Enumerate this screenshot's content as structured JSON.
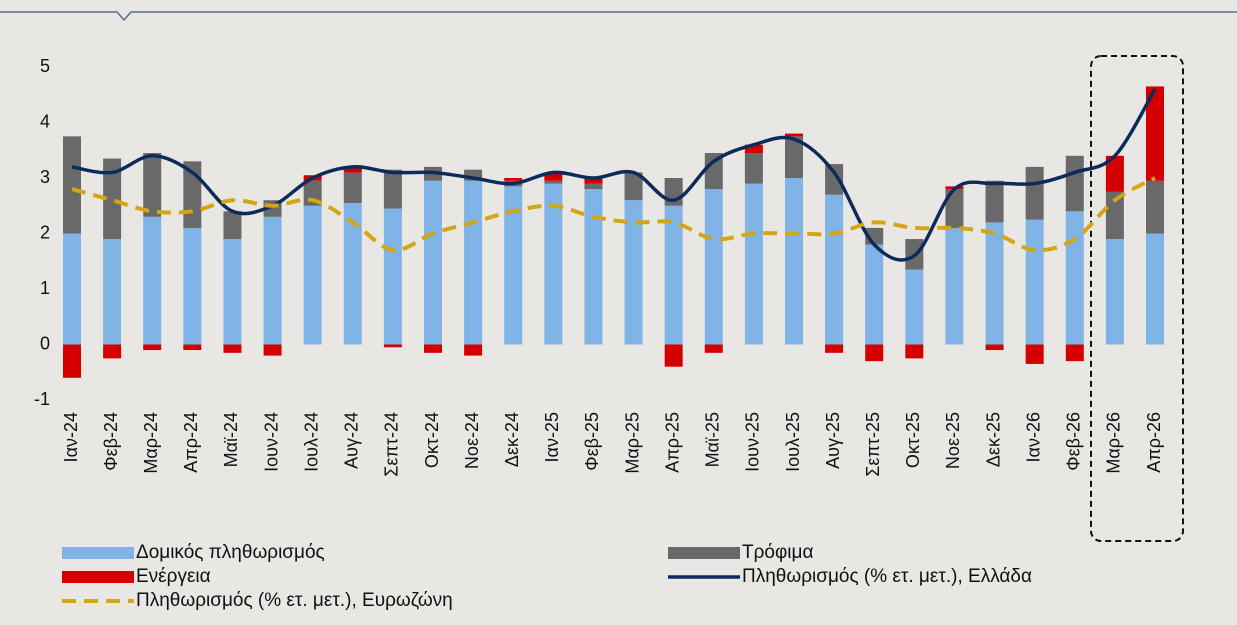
{
  "chart_data": {
    "type": "bar",
    "categories": [
      "Ιαν-24",
      "Φεβ-24",
      "Μαρ-24",
      "Απρ-24",
      "Μαϊ-24",
      "Ιουν-24",
      "Ιουλ-24",
      "Αυγ-24",
      "Σεπτ-24",
      "Οκτ-24",
      "Νοε-24",
      "Δεκ-24",
      "Ιαν-25",
      "Φεβ-25",
      "Μαρ-25",
      "Απρ-25",
      "Μαϊ-25",
      "Ιουν-25",
      "Ιουλ-25",
      "Αυγ-25",
      "Σεπτ-25",
      "Οκτ-25",
      "Νοε-25",
      "Δεκ-25",
      "Ιαν-26",
      "Φεβ-26",
      "Μαρ-26",
      "Απρ-26"
    ],
    "series": [
      {
        "name": "Δομικός πληθωρισμός",
        "color": "#80b3e6",
        "values": [
          2.0,
          1.9,
          2.3,
          2.1,
          1.9,
          2.3,
          2.5,
          2.55,
          2.45,
          2.95,
          2.95,
          2.85,
          2.9,
          2.8,
          2.6,
          2.5,
          2.8,
          2.9,
          3.0,
          2.7,
          1.8,
          1.35,
          2.1,
          2.2,
          2.25,
          2.4,
          1.9,
          2.0
        ]
      },
      {
        "name": "Τρόφιμα",
        "color": "#696969",
        "values": [
          1.75,
          1.45,
          1.15,
          1.2,
          0.5,
          0.3,
          0.45,
          0.55,
          0.7,
          0.25,
          0.2,
          0.1,
          0.05,
          0.1,
          0.5,
          0.5,
          0.65,
          0.55,
          0.75,
          0.55,
          0.3,
          0.55,
          0.7,
          0.75,
          0.95,
          1.0,
          0.85,
          0.95
        ]
      },
      {
        "name": "Ενέργεια",
        "color": "#d40000",
        "values": [
          -0.6,
          -0.25,
          -0.1,
          -0.1,
          -0.15,
          -0.2,
          0.1,
          0.1,
          -0.05,
          -0.15,
          -0.2,
          0.05,
          0.15,
          0.1,
          0,
          -0.4,
          -0.15,
          0.15,
          0.05,
          -0.15,
          -0.3,
          -0.25,
          0.05,
          -0.1,
          -0.35,
          -0.3,
          0.65,
          1.7
        ]
      },
      {
        "name": "Πληθωρισμός (% ετ. μετ.), Ελλάδα",
        "type": "line",
        "color": "#0d2a5c",
        "values": [
          3.2,
          3.1,
          3.4,
          3.1,
          2.4,
          2.5,
          3.0,
          3.2,
          3.1,
          3.1,
          3.0,
          2.9,
          3.1,
          3.0,
          3.1,
          2.6,
          3.3,
          3.6,
          3.7,
          3.1,
          1.8,
          1.6,
          2.8,
          2.9,
          2.9,
          3.1,
          3.4,
          4.6
        ]
      },
      {
        "name": "Πληθωρισμός (% ετ. μετ.), Ευρωζώνη",
        "type": "line",
        "dashed": true,
        "color": "#d4a614",
        "values": [
          2.8,
          2.6,
          2.4,
          2.4,
          2.6,
          2.5,
          2.6,
          2.2,
          1.7,
          2.0,
          2.2,
          2.4,
          2.5,
          2.3,
          2.2,
          2.2,
          1.9,
          2.0,
          2.0,
          2.0,
          2.2,
          2.1,
          2.1,
          2.0,
          1.7,
          1.9,
          2.6,
          3.0
        ]
      }
    ],
    "ylim": [
      -1,
      5
    ],
    "yticks": [
      -1,
      0,
      1,
      2,
      3,
      4,
      5
    ],
    "stacked": true
  }
}
